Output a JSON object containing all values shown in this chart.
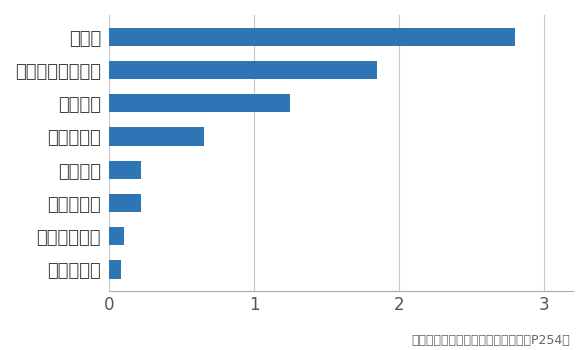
{
  "categories": [
    "溶血性貧血",
    "多発性関節炎",
    "血小板減少",
    "角膜浮腫",
    "じんましん",
    "局所反応",
    "アナフィラキシー",
    "過敏症"
  ],
  "values": [
    0.08,
    0.1,
    0.22,
    0.22,
    0.65,
    1.25,
    1.85,
    2.8
  ],
  "bar_color": "#2E75B6",
  "xlim": [
    0,
    3.2
  ],
  "xticks": [
    0,
    1,
    2,
    3
  ],
  "footnote": "出典：イラストで見る獣医免疫学（P254）",
  "background_color": "#ffffff",
  "grid_color": "#c8c8c8",
  "label_fontsize": 13,
  "tick_fontsize": 12,
  "footnote_fontsize": 9,
  "bar_height": 0.55
}
